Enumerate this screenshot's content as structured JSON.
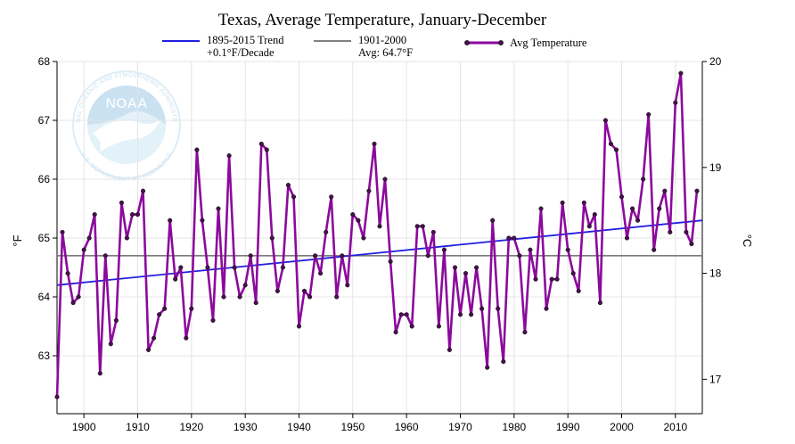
{
  "chart_data": {
    "type": "line",
    "title": "Texas, Average Temperature, January-December",
    "ylabel_left": "°F",
    "ylabel_right": "°C",
    "ylim_f": [
      62.2,
      68.0
    ],
    "xlim": [
      1895,
      2015
    ],
    "x_ticks": [
      1900,
      1910,
      1920,
      1930,
      1940,
      1950,
      1960,
      1970,
      1980,
      1990,
      2000,
      2010
    ],
    "y_ticks_f": [
      63,
      64,
      65,
      66,
      67,
      68
    ],
    "y_ticks_c": [
      17,
      18,
      19,
      20
    ],
    "grid": true,
    "legend": [
      {
        "key": "trend",
        "line1": "1895-2015 Trend",
        "line2": "+0.1°F/Decade",
        "color": "#1f1fe0"
      },
      {
        "key": "avg",
        "line1": "1901-2000",
        "line2": "Avg: 64.7°F",
        "color": "#808080"
      },
      {
        "key": "series",
        "line1": "Avg Temperature",
        "line2": "",
        "color": "#8b0a9c"
      }
    ],
    "trend": {
      "x": [
        1895,
        2015
      ],
      "y": [
        64.2,
        65.3
      ]
    },
    "baseline": 64.7,
    "series": [
      {
        "name": "Avg Temperature",
        "start_year": 1895,
        "values": [
          62.3,
          65.1,
          64.4,
          63.9,
          64.0,
          64.8,
          65.0,
          65.4,
          62.7,
          64.7,
          63.2,
          63.6,
          65.6,
          65.0,
          65.4,
          65.4,
          65.8,
          63.1,
          63.3,
          63.7,
          63.8,
          65.3,
          64.3,
          64.5,
          63.3,
          63.8,
          66.5,
          65.3,
          64.5,
          63.6,
          65.5,
          64.0,
          66.4,
          64.5,
          64.0,
          64.2,
          64.7,
          63.9,
          66.6,
          66.5,
          65.0,
          64.1,
          64.5,
          65.9,
          65.7,
          63.5,
          64.1,
          64.0,
          64.7,
          64.4,
          65.1,
          65.7,
          64.0,
          64.7,
          64.2,
          65.4,
          65.3,
          65.0,
          65.8,
          66.6,
          65.2,
          66.0,
          64.6,
          63.4,
          63.7,
          63.7,
          63.5,
          65.2,
          65.2,
          64.7,
          65.1,
          63.5,
          64.8,
          63.1,
          64.5,
          63.7,
          64.4,
          63.7,
          64.5,
          63.8,
          62.8,
          65.3,
          63.8,
          62.9,
          65.0,
          65.0,
          64.7,
          63.4,
          64.8,
          64.3,
          65.5,
          63.8,
          64.3,
          64.3,
          65.6,
          64.8,
          64.4,
          64.1,
          65.6,
          65.2,
          65.4,
          63.9,
          67.0,
          66.6,
          66.5,
          65.7,
          65.0,
          65.5,
          65.3,
          66.0,
          67.1,
          64.8,
          65.5,
          65.8,
          65.1,
          67.3,
          67.8,
          65.1,
          64.9,
          65.8
        ]
      }
    ]
  },
  "watermark": {
    "name": "NOAA",
    "arc_top": "NATIONAL OCEANIC AND ATMOSPHERIC ADMINISTRATION",
    "arc_bottom": "U.S. DEPARTMENT OF COMMERCE"
  }
}
